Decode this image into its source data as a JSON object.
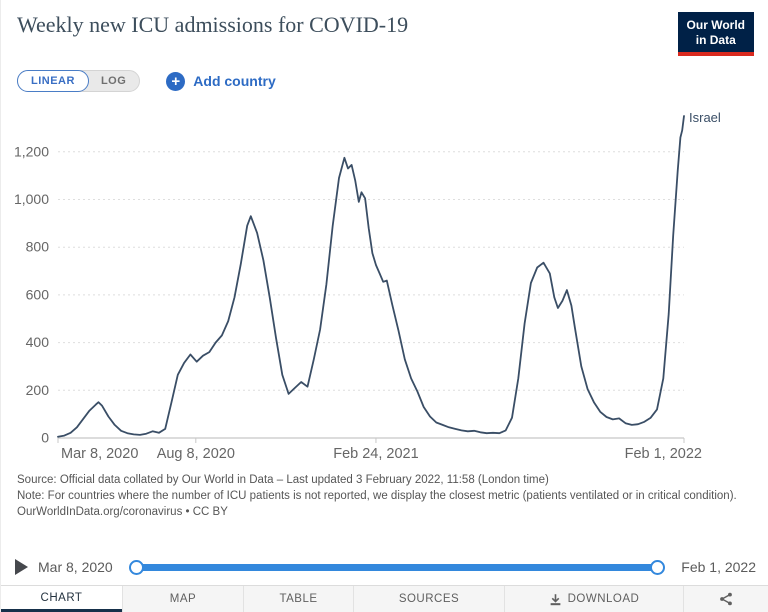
{
  "header": {
    "title": "Weekly new ICU admissions for COVID-19",
    "logo": {
      "line1": "Our World",
      "line2": "in Data"
    }
  },
  "controls": {
    "linear_label": "LINEAR",
    "log_label": "LOG",
    "add_country_label": "Add country",
    "plus_glyph": "+"
  },
  "chart_data": {
    "type": "line",
    "title": "Weekly new ICU admissions for COVID-19",
    "x_unit": "days since 2020-03-08",
    "xlim": [
      0,
      695
    ],
    "ylim": [
      0,
      1360
    ],
    "grid": "horizontal dashed",
    "legend": "end-of-line label",
    "x_ticks": [
      {
        "day": 0,
        "label": "Mar 8, 2020"
      },
      {
        "day": 153,
        "label": "Aug 8, 2020"
      },
      {
        "day": 353,
        "label": "Feb 24, 2021"
      },
      {
        "day": 695,
        "label": "Feb 1, 2022"
      }
    ],
    "y_ticks": [
      0,
      200,
      400,
      600,
      800,
      1000,
      1200
    ],
    "y_tick_labels": [
      "0",
      "200",
      "400",
      "600",
      "800",
      "1,000",
      "1,200"
    ],
    "series": [
      {
        "name": "Israel",
        "color": "#3a4e66",
        "points": [
          [
            0,
            5
          ],
          [
            7,
            10
          ],
          [
            14,
            22
          ],
          [
            21,
            45
          ],
          [
            28,
            80
          ],
          [
            35,
            115
          ],
          [
            42,
            140
          ],
          [
            45,
            150
          ],
          [
            49,
            135
          ],
          [
            56,
            90
          ],
          [
            63,
            55
          ],
          [
            70,
            30
          ],
          [
            77,
            20
          ],
          [
            84,
            15
          ],
          [
            91,
            13
          ],
          [
            98,
            18
          ],
          [
            105,
            28
          ],
          [
            112,
            22
          ],
          [
            119,
            38
          ],
          [
            126,
            150
          ],
          [
            133,
            265
          ],
          [
            140,
            315
          ],
          [
            147,
            350
          ],
          [
            154,
            320
          ],
          [
            161,
            345
          ],
          [
            168,
            360
          ],
          [
            175,
            400
          ],
          [
            182,
            430
          ],
          [
            189,
            490
          ],
          [
            196,
            590
          ],
          [
            203,
            730
          ],
          [
            210,
            890
          ],
          [
            214,
            930
          ],
          [
            221,
            860
          ],
          [
            228,
            745
          ],
          [
            235,
            590
          ],
          [
            242,
            420
          ],
          [
            249,
            265
          ],
          [
            256,
            185
          ],
          [
            263,
            210
          ],
          [
            270,
            235
          ],
          [
            277,
            215
          ],
          [
            284,
            330
          ],
          [
            291,
            455
          ],
          [
            298,
            645
          ],
          [
            305,
            890
          ],
          [
            312,
            1090
          ],
          [
            318,
            1175
          ],
          [
            322,
            1130
          ],
          [
            326,
            1145
          ],
          [
            330,
            1080
          ],
          [
            334,
            990
          ],
          [
            337,
            1030
          ],
          [
            341,
            1005
          ],
          [
            345,
            880
          ],
          [
            349,
            775
          ],
          [
            353,
            725
          ],
          [
            357,
            690
          ],
          [
            361,
            655
          ],
          [
            365,
            660
          ],
          [
            371,
            560
          ],
          [
            378,
            450
          ],
          [
            385,
            330
          ],
          [
            392,
            250
          ],
          [
            399,
            195
          ],
          [
            406,
            130
          ],
          [
            413,
            90
          ],
          [
            420,
            65
          ],
          [
            427,
            55
          ],
          [
            434,
            45
          ],
          [
            441,
            38
          ],
          [
            448,
            32
          ],
          [
            455,
            28
          ],
          [
            462,
            30
          ],
          [
            469,
            24
          ],
          [
            476,
            20
          ],
          [
            483,
            22
          ],
          [
            490,
            20
          ],
          [
            497,
            32
          ],
          [
            504,
            85
          ],
          [
            511,
            250
          ],
          [
            518,
            480
          ],
          [
            525,
            650
          ],
          [
            532,
            715
          ],
          [
            539,
            735
          ],
          [
            546,
            690
          ],
          [
            551,
            590
          ],
          [
            555,
            545
          ],
          [
            560,
            575
          ],
          [
            565,
            620
          ],
          [
            570,
            555
          ],
          [
            574,
            460
          ],
          [
            581,
            300
          ],
          [
            588,
            205
          ],
          [
            595,
            150
          ],
          [
            602,
            110
          ],
          [
            609,
            88
          ],
          [
            616,
            78
          ],
          [
            623,
            82
          ],
          [
            630,
            62
          ],
          [
            637,
            55
          ],
          [
            644,
            58
          ],
          [
            651,
            68
          ],
          [
            658,
            85
          ],
          [
            665,
            120
          ],
          [
            672,
            250
          ],
          [
            678,
            520
          ],
          [
            683,
            850
          ],
          [
            688,
            1120
          ],
          [
            691,
            1260
          ],
          [
            693,
            1290
          ],
          [
            695,
            1350
          ]
        ]
      }
    ]
  },
  "source_notes": {
    "source": "Source: Official data collated by Our World in Data – Last updated 3 February 2022, 11:58 (London time)",
    "note": "Note: For countries where the number of ICU patients is not reported, we display the closest metric (patients ventilated or in critical condition).",
    "license": "OurWorldInData.org/coronavirus • CC BY"
  },
  "timeline": {
    "start_label": "Mar 8, 2020",
    "end_label": "Feb 1, 2022"
  },
  "footer": {
    "tabs": [
      {
        "label": "CHART",
        "active": true
      },
      {
        "label": "MAP"
      },
      {
        "label": "TABLE"
      },
      {
        "label": "SOURCES"
      },
      {
        "label": "DOWNLOAD"
      }
    ]
  },
  "colors": {
    "line": "#3a4e66",
    "accent_blue": "#2d6bc4",
    "slider_blue": "#3388dd",
    "logo_navy": "#002147",
    "logo_red": "#d9291e",
    "active_tab_underline": "#16304a",
    "axis_text": "#666666",
    "grid": "#dedede"
  }
}
